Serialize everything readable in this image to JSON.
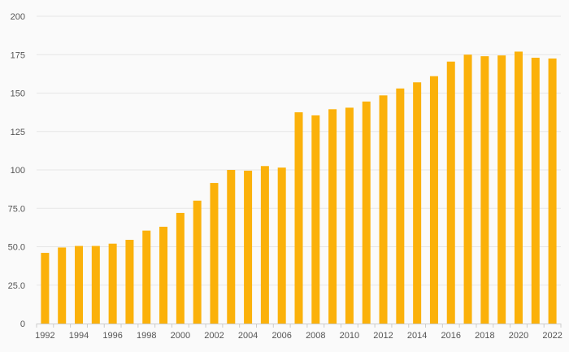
{
  "chart_data": {
    "type": "bar",
    "title": "",
    "xlabel": "",
    "ylabel": "",
    "ylim": [
      0,
      200
    ],
    "y_ticks": [
      "0",
      "25.0",
      "50.0",
      "75.0",
      "100",
      "125",
      "150",
      "175",
      "200"
    ],
    "x_tick_labels": [
      "1992",
      "1994",
      "1996",
      "1998",
      "2000",
      "2002",
      "2004",
      "2006",
      "2008",
      "2010",
      "2012",
      "2014",
      "2016",
      "2018",
      "2020",
      "2022"
    ],
    "grid": true,
    "legend": "none",
    "bar_color": "#FBB10A",
    "categories": [
      "1992",
      "1993",
      "1994",
      "1995",
      "1996",
      "1997",
      "1998",
      "1999",
      "2000",
      "2001",
      "2002",
      "2003",
      "2004",
      "2005",
      "2006",
      "2007",
      "2008",
      "2009",
      "2010",
      "2011",
      "2012",
      "2013",
      "2014",
      "2015",
      "2016",
      "2017",
      "2018",
      "2019",
      "2020",
      "2021",
      "2022"
    ],
    "values": [
      46,
      49.5,
      50.5,
      50.5,
      52,
      54.5,
      60.5,
      63,
      72,
      80,
      91.5,
      100,
      99.5,
      102.5,
      101.5,
      137.5,
      135.5,
      139.5,
      140.5,
      144.5,
      148.5,
      153,
      157,
      161,
      170.5,
      175,
      174,
      174.5,
      177,
      173,
      172.5
    ]
  }
}
